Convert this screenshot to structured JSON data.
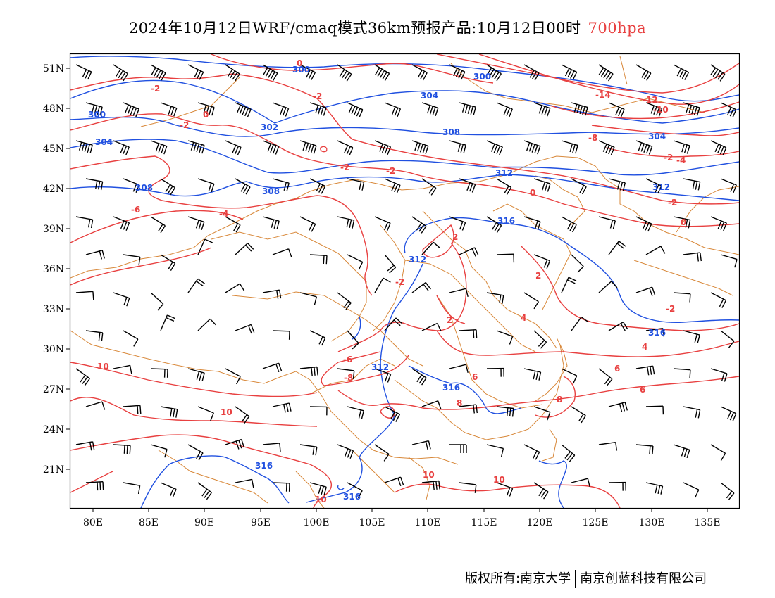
{
  "title": {
    "text": "2024年10月12日WRF/cmaq模式36km预报产品:10月12日00时",
    "level": "700hpa"
  },
  "footer": {
    "copyright": "版权所有:南京大学",
    "company": "南京创蓝科技有限公司"
  },
  "axes": {
    "lat_labels": [
      "51N",
      "48N",
      "45N",
      "42N",
      "39N",
      "36N",
      "33N",
      "30N",
      "27N",
      "24N",
      "21N"
    ],
    "lon_labels": [
      "80E",
      "85E",
      "90E",
      "95E",
      "100E",
      "105E",
      "110E",
      "115E",
      "120E",
      "125E",
      "130E",
      "135E"
    ]
  },
  "colors": {
    "height_contour": "#2050e0",
    "temp_contour": "#e84040",
    "border": "#d8883a",
    "wind_barb": "#000000"
  },
  "height_labels": [
    "300",
    "300",
    "300",
    "302",
    "304",
    "304",
    "304",
    "308",
    "308",
    "308",
    "312",
    "312",
    "312",
    "312",
    "316",
    "316",
    "316",
    "316",
    "316"
  ],
  "temp_labels": [
    "0",
    "0",
    "0",
    "0",
    "-2",
    "-2",
    "-2",
    "-2",
    "-2",
    "-2",
    "-2",
    "-2",
    "-2",
    "2",
    "2",
    "2",
    "-4",
    "-4",
    "4",
    "4",
    "-6",
    "-6",
    "6",
    "6",
    "6",
    "-8",
    "-8",
    "8",
    "8",
    "10",
    "10",
    "10",
    "10",
    "10",
    "-10",
    "-12",
    "-14"
  ]
}
